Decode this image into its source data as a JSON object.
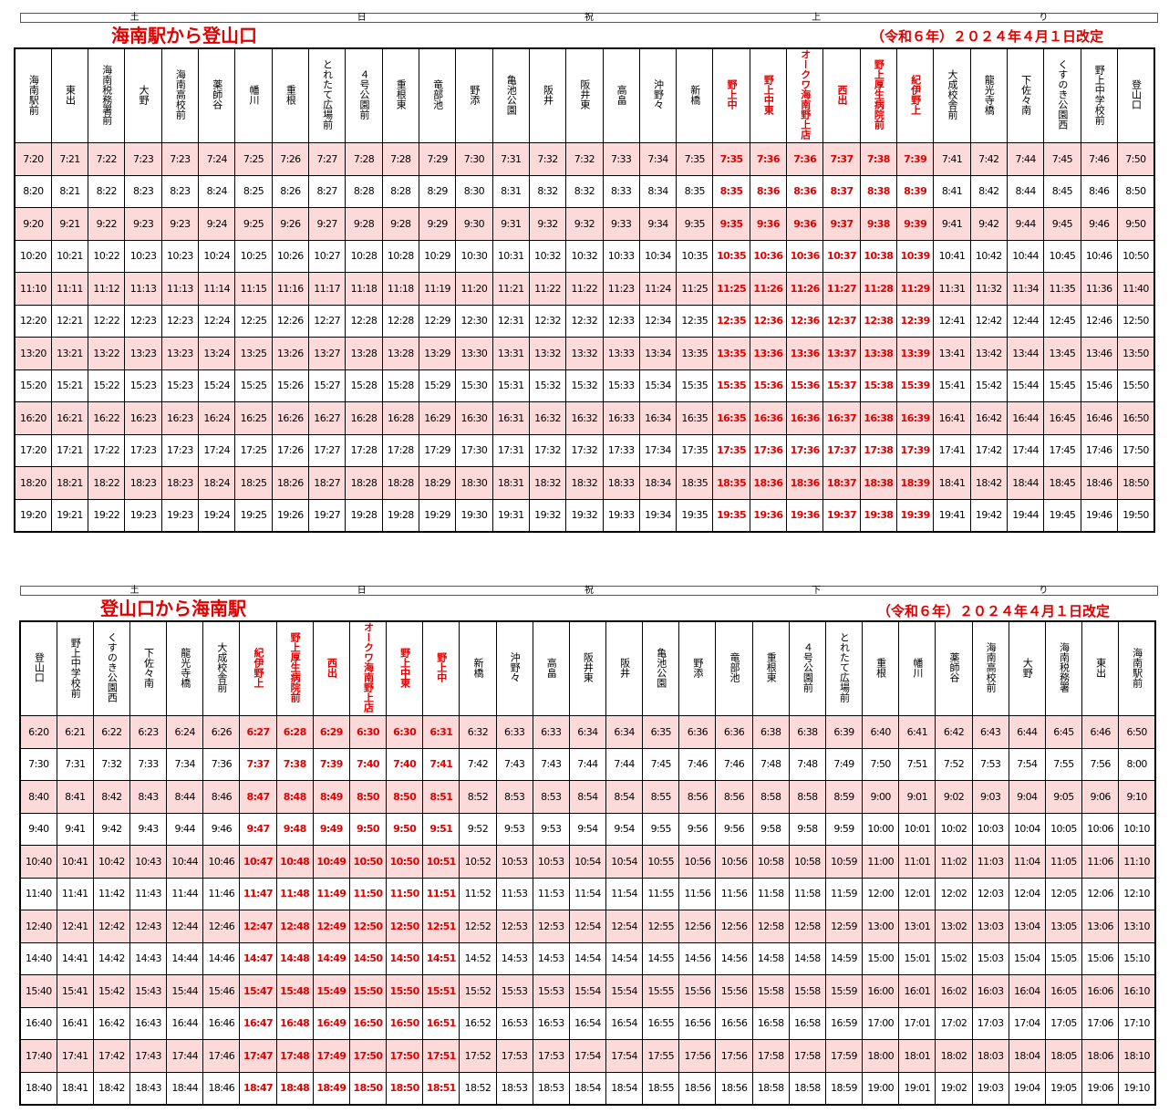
{
  "up": {
    "day_labels": [
      "土",
      "日",
      "祝",
      "上",
      "り"
    ],
    "title": "海南駅から登山口",
    "revision": "（令和６年）２０２４年４月１日改定",
    "stops": [
      "海南駅前",
      "東出",
      "海南税務署前",
      "大野",
      "海南高校前",
      "薬師谷",
      "幡川",
      "重根",
      "とれたて広場前",
      "４号公園前",
      "重根東",
      "竜部池",
      "野添",
      "亀池公園",
      "阪井",
      "阪井東",
      "高畠",
      "沖野々",
      "新橋",
      "野上中",
      "野上中東",
      "オークワ海南野上店",
      "西出",
      "野上厚生病院前",
      "紀伊野上",
      "大成校舎前",
      "龍光寺橋",
      "下佐々南",
      "くすのき公園西",
      "野上中学校前",
      "登山口"
    ],
    "highlight_cols": [
      19,
      20,
      21,
      22,
      23,
      24
    ],
    "rows": [
      [
        "7:20",
        "7:21",
        "7:22",
        "7:23",
        "7:23",
        "7:24",
        "7:25",
        "7:26",
        "7:27",
        "7:28",
        "7:28",
        "7:29",
        "7:30",
        "7:31",
        "7:32",
        "7:32",
        "7:33",
        "7:34",
        "7:35",
        "7:35",
        "7:36",
        "7:36",
        "7:37",
        "7:38",
        "7:39",
        "7:41",
        "7:42",
        "7:44",
        "7:45",
        "7:46",
        "7:50"
      ],
      [
        "8:20",
        "8:21",
        "8:22",
        "8:23",
        "8:23",
        "8:24",
        "8:25",
        "8:26",
        "8:27",
        "8:28",
        "8:28",
        "8:29",
        "8:30",
        "8:31",
        "8:32",
        "8:32",
        "8:33",
        "8:34",
        "8:35",
        "8:35",
        "8:36",
        "8:36",
        "8:37",
        "8:38",
        "8:39",
        "8:41",
        "8:42",
        "8:44",
        "8:45",
        "8:46",
        "8:50"
      ],
      [
        "9:20",
        "9:21",
        "9:22",
        "9:23",
        "9:23",
        "9:24",
        "9:25",
        "9:26",
        "9:27",
        "9:28",
        "9:28",
        "9:29",
        "9:30",
        "9:31",
        "9:32",
        "9:32",
        "9:33",
        "9:34",
        "9:35",
        "9:35",
        "9:36",
        "9:36",
        "9:37",
        "9:38",
        "9:39",
        "9:41",
        "9:42",
        "9:44",
        "9:45",
        "9:46",
        "9:50"
      ],
      [
        "10:20",
        "10:21",
        "10:22",
        "10:23",
        "10:23",
        "10:24",
        "10:25",
        "10:26",
        "10:27",
        "10:28",
        "10:28",
        "10:29",
        "10:30",
        "10:31",
        "10:32",
        "10:32",
        "10:33",
        "10:34",
        "10:35",
        "10:35",
        "10:36",
        "10:36",
        "10:37",
        "10:38",
        "10:39",
        "10:41",
        "10:42",
        "10:44",
        "10:45",
        "10:46",
        "10:50"
      ],
      [
        "11:10",
        "11:11",
        "11:12",
        "11:13",
        "11:13",
        "11:14",
        "11:15",
        "11:16",
        "11:17",
        "11:18",
        "11:18",
        "11:19",
        "11:20",
        "11:21",
        "11:22",
        "11:22",
        "11:23",
        "11:24",
        "11:25",
        "11:25",
        "11:26",
        "11:26",
        "11:27",
        "11:28",
        "11:29",
        "11:31",
        "11:32",
        "11:34",
        "11:35",
        "11:36",
        "11:40"
      ],
      [
        "12:20",
        "12:21",
        "12:22",
        "12:23",
        "12:23",
        "12:24",
        "12:25",
        "12:26",
        "12:27",
        "12:28",
        "12:28",
        "12:29",
        "12:30",
        "12:31",
        "12:32",
        "12:32",
        "12:33",
        "12:34",
        "12:35",
        "12:35",
        "12:36",
        "12:36",
        "12:37",
        "12:38",
        "12:39",
        "12:41",
        "12:42",
        "12:44",
        "12:45",
        "12:46",
        "12:50"
      ],
      [
        "13:20",
        "13:21",
        "13:22",
        "13:23",
        "13:23",
        "13:24",
        "13:25",
        "13:26",
        "13:27",
        "13:28",
        "13:28",
        "13:29",
        "13:30",
        "13:31",
        "13:32",
        "13:32",
        "13:33",
        "13:34",
        "13:35",
        "13:35",
        "13:36",
        "13:36",
        "13:37",
        "13:38",
        "13:39",
        "13:41",
        "13:42",
        "13:44",
        "13:45",
        "13:46",
        "13:50"
      ],
      [
        "15:20",
        "15:21",
        "15:22",
        "15:23",
        "15:23",
        "15:24",
        "15:25",
        "15:26",
        "15:27",
        "15:28",
        "15:28",
        "15:29",
        "15:30",
        "15:31",
        "15:32",
        "15:32",
        "15:33",
        "15:34",
        "15:35",
        "15:35",
        "15:36",
        "15:36",
        "15:37",
        "15:38",
        "15:39",
        "15:41",
        "15:42",
        "15:44",
        "15:45",
        "15:46",
        "15:50"
      ],
      [
        "16:20",
        "16:21",
        "16:22",
        "16:23",
        "16:23",
        "16:24",
        "16:25",
        "16:26",
        "16:27",
        "16:28",
        "16:28",
        "16:29",
        "16:30",
        "16:31",
        "16:32",
        "16:32",
        "16:33",
        "16:34",
        "16:35",
        "16:35",
        "16:36",
        "16:36",
        "16:37",
        "16:38",
        "16:39",
        "16:41",
        "16:42",
        "16:44",
        "16:45",
        "16:46",
        "16:50"
      ],
      [
        "17:20",
        "17:21",
        "17:22",
        "17:23",
        "17:23",
        "17:24",
        "17:25",
        "17:26",
        "17:27",
        "17:28",
        "17:28",
        "17:29",
        "17:30",
        "17:31",
        "17:32",
        "17:32",
        "17:33",
        "17:34",
        "17:35",
        "17:35",
        "17:36",
        "17:36",
        "17:37",
        "17:38",
        "17:39",
        "17:41",
        "17:42",
        "17:44",
        "17:45",
        "17:46",
        "17:50"
      ],
      [
        "18:20",
        "18:21",
        "18:22",
        "18:23",
        "18:23",
        "18:24",
        "18:25",
        "18:26",
        "18:27",
        "18:28",
        "18:28",
        "18:29",
        "18:30",
        "18:31",
        "18:32",
        "18:32",
        "18:33",
        "18:34",
        "18:35",
        "18:35",
        "18:36",
        "18:36",
        "18:37",
        "18:38",
        "18:39",
        "18:41",
        "18:42",
        "18:44",
        "18:45",
        "18:46",
        "18:50"
      ],
      [
        "19:20",
        "19:21",
        "19:22",
        "19:23",
        "19:23",
        "19:24",
        "19:25",
        "19:26",
        "19:27",
        "19:28",
        "19:28",
        "19:29",
        "19:30",
        "19:31",
        "19:32",
        "19:32",
        "19:33",
        "19:34",
        "19:35",
        "19:35",
        "19:36",
        "19:36",
        "19:37",
        "19:38",
        "19:39",
        "19:41",
        "19:42",
        "19:44",
        "19:45",
        "19:46",
        "19:50"
      ]
    ]
  },
  "down": {
    "day_labels": [
      "土",
      "日",
      "祝",
      "下",
      "り"
    ],
    "title": "登山口から海南駅",
    "revision": "（令和６年）２０２４年４月１日改定",
    "stops": [
      "登山口",
      "野上中学校前",
      "くすのき公園西",
      "下佐々南",
      "龍光寺橋",
      "大成校舎前",
      "紀伊野上",
      "野上厚生病院前",
      "西出",
      "オークワ海南野上店",
      "野上中東",
      "野上中",
      "新橋",
      "沖野々",
      "高畠",
      "阪井東",
      "阪井",
      "亀池公園",
      "野添",
      "竜部池",
      "重根東",
      "４号公園前",
      "とれたて広場前",
      "重根",
      "幡川",
      "薬師谷",
      "海南高校前",
      "大野",
      "海南税務署",
      "東出",
      "海南駅前"
    ],
    "highlight_cols": [
      6,
      7,
      8,
      9,
      10,
      11
    ],
    "rows": [
      [
        "6:20",
        "6:21",
        "6:22",
        "6:23",
        "6:24",
        "6:26",
        "6:27",
        "6:28",
        "6:29",
        "6:30",
        "6:30",
        "6:31",
        "6:32",
        "6:33",
        "6:33",
        "6:34",
        "6:34",
        "6:35",
        "6:36",
        "6:36",
        "6:38",
        "6:38",
        "6:39",
        "6:40",
        "6:41",
        "6:42",
        "6:43",
        "6:44",
        "6:45",
        "6:46",
        "6:50"
      ],
      [
        "7:30",
        "7:31",
        "7:32",
        "7:33",
        "7:34",
        "7:36",
        "7:37",
        "7:38",
        "7:39",
        "7:40",
        "7:40",
        "7:41",
        "7:42",
        "7:43",
        "7:43",
        "7:44",
        "7:44",
        "7:45",
        "7:46",
        "7:46",
        "7:48",
        "7:48",
        "7:49",
        "7:50",
        "7:51",
        "7:52",
        "7:53",
        "7:54",
        "7:55",
        "7:56",
        "8:00"
      ],
      [
        "8:40",
        "8:41",
        "8:42",
        "8:43",
        "8:44",
        "8:46",
        "8:47",
        "8:48",
        "8:49",
        "8:50",
        "8:50",
        "8:51",
        "8:52",
        "8:53",
        "8:53",
        "8:54",
        "8:54",
        "8:55",
        "8:56",
        "8:56",
        "8:58",
        "8:58",
        "8:59",
        "9:00",
        "9:01",
        "9:02",
        "9:03",
        "9:04",
        "9:05",
        "9:06",
        "9:10"
      ],
      [
        "9:40",
        "9:41",
        "9:42",
        "9:43",
        "9:44",
        "9:46",
        "9:47",
        "9:48",
        "9:49",
        "9:50",
        "9:50",
        "9:51",
        "9:52",
        "9:53",
        "9:53",
        "9:54",
        "9:54",
        "9:55",
        "9:56",
        "9:56",
        "9:58",
        "9:58",
        "9:59",
        "10:00",
        "10:01",
        "10:02",
        "10:03",
        "10:04",
        "10:05",
        "10:06",
        "10:10"
      ],
      [
        "10:40",
        "10:41",
        "10:42",
        "10:43",
        "10:44",
        "10:46",
        "10:47",
        "10:48",
        "10:49",
        "10:50",
        "10:50",
        "10:51",
        "10:52",
        "10:53",
        "10:53",
        "10:54",
        "10:54",
        "10:55",
        "10:56",
        "10:56",
        "10:58",
        "10:58",
        "10:59",
        "11:00",
        "11:01",
        "11:02",
        "11:03",
        "11:04",
        "11:05",
        "11:06",
        "11:10"
      ],
      [
        "11:40",
        "11:41",
        "11:42",
        "11:43",
        "11:44",
        "11:46",
        "11:47",
        "11:48",
        "11:49",
        "11:50",
        "11:50",
        "11:51",
        "11:52",
        "11:53",
        "11:53",
        "11:54",
        "11:54",
        "11:55",
        "11:56",
        "11:56",
        "11:58",
        "11:58",
        "11:59",
        "12:00",
        "12:01",
        "12:02",
        "12:03",
        "12:04",
        "12:05",
        "12:06",
        "12:10"
      ],
      [
        "12:40",
        "12:41",
        "12:42",
        "12:43",
        "12:44",
        "12:46",
        "12:47",
        "12:48",
        "12:49",
        "12:50",
        "12:50",
        "12:51",
        "12:52",
        "12:53",
        "12:53",
        "12:54",
        "12:54",
        "12:55",
        "12:56",
        "12:56",
        "12:58",
        "12:58",
        "12:59",
        "13:00",
        "13:01",
        "13:02",
        "13:03",
        "13:04",
        "13:05",
        "13:06",
        "13:10"
      ],
      [
        "14:40",
        "14:41",
        "14:42",
        "14:43",
        "14:44",
        "14:46",
        "14:47",
        "14:48",
        "14:49",
        "14:50",
        "14:50",
        "14:51",
        "14:52",
        "14:53",
        "14:53",
        "14:54",
        "14:54",
        "14:55",
        "14:56",
        "14:56",
        "14:58",
        "14:58",
        "14:59",
        "15:00",
        "15:01",
        "15:02",
        "15:03",
        "15:04",
        "15:05",
        "15:06",
        "15:10"
      ],
      [
        "15:40",
        "15:41",
        "15:42",
        "15:43",
        "15:44",
        "15:46",
        "15:47",
        "15:48",
        "15:49",
        "15:50",
        "15:50",
        "15:51",
        "15:52",
        "15:53",
        "15:53",
        "15:54",
        "15:54",
        "15:55",
        "15:56",
        "15:56",
        "15:58",
        "15:58",
        "15:59",
        "16:00",
        "16:01",
        "16:02",
        "16:03",
        "16:04",
        "16:05",
        "16:06",
        "16:10"
      ],
      [
        "16:40",
        "16:41",
        "16:42",
        "16:43",
        "16:44",
        "16:46",
        "16:47",
        "16:48",
        "16:49",
        "16:50",
        "16:50",
        "16:51",
        "16:52",
        "16:53",
        "16:53",
        "16:54",
        "16:54",
        "16:55",
        "16:56",
        "16:56",
        "16:58",
        "16:58",
        "16:59",
        "17:00",
        "17:01",
        "17:02",
        "17:03",
        "17:04",
        "17:05",
        "17:06",
        "17:10"
      ],
      [
        "17:40",
        "17:41",
        "17:42",
        "17:43",
        "17:44",
        "17:46",
        "17:47",
        "17:48",
        "17:49",
        "17:50",
        "17:50",
        "17:51",
        "17:52",
        "17:53",
        "17:53",
        "17:54",
        "17:54",
        "17:55",
        "17:56",
        "17:56",
        "17:58",
        "17:58",
        "17:59",
        "18:00",
        "18:01",
        "18:02",
        "18:03",
        "18:04",
        "18:05",
        "18:06",
        "18:10"
      ],
      [
        "18:40",
        "18:41",
        "18:42",
        "18:43",
        "18:44",
        "18:46",
        "18:47",
        "18:48",
        "18:49",
        "18:50",
        "18:50",
        "18:51",
        "18:52",
        "18:53",
        "18:53",
        "18:54",
        "18:54",
        "18:55",
        "18:56",
        "18:56",
        "18:58",
        "18:58",
        "18:59",
        "19:00",
        "19:01",
        "19:02",
        "19:03",
        "19:04",
        "19:05",
        "19:06",
        "19:10"
      ]
    ]
  }
}
